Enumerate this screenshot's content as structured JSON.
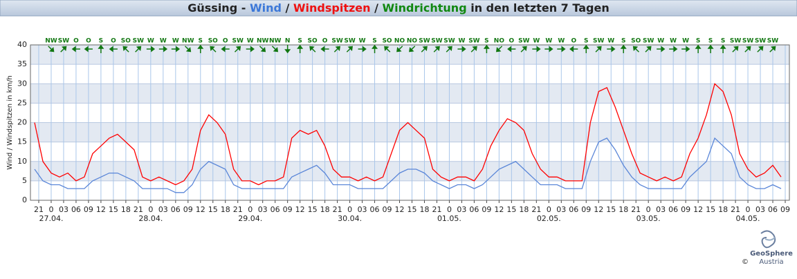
{
  "chart_data": {
    "type": "line",
    "title": [
      {
        "text": "Güssing - ",
        "color": "#222222"
      },
      {
        "text": "Wind",
        "color": "#3c78d8"
      },
      {
        "text": " / ",
        "color": "#222222"
      },
      {
        "text": "Windspitzen",
        "color": "#ee1111"
      },
      {
        "text": " / ",
        "color": "#222222"
      },
      {
        "text": "Windrichtung",
        "color": "#118811"
      },
      {
        "text": " in den letzten 7 Tagen",
        "color": "#222222"
      }
    ],
    "y_label": "Wind / Windspitzen in km/h",
    "x": [
      -4,
      -2,
      0,
      2,
      4,
      6,
      8,
      10,
      12,
      14,
      16,
      18,
      20,
      22,
      24,
      26,
      28,
      30,
      32,
      34,
      36,
      38,
      40,
      42,
      44,
      46,
      48,
      50,
      52,
      54,
      56,
      58,
      60,
      62,
      64,
      66,
      68,
      70,
      72,
      74,
      76,
      78,
      80,
      82,
      84,
      86,
      88,
      90,
      92,
      94,
      96,
      98,
      100,
      102,
      104,
      106,
      108,
      110,
      112,
      114,
      116,
      118,
      120,
      122,
      124,
      126,
      128,
      130,
      132,
      134,
      136,
      138,
      140,
      142,
      144,
      146,
      148,
      150,
      152,
      154,
      156,
      158,
      160,
      162,
      164,
      166,
      168,
      170,
      172,
      174,
      176
    ],
    "series": [
      {
        "name": "Windspitzen",
        "color": "#ff0000",
        "values": [
          20,
          10,
          7,
          6,
          7,
          5,
          6,
          12,
          14,
          16,
          17,
          15,
          13,
          6,
          5,
          6,
          5,
          4,
          5,
          8,
          18,
          22,
          20,
          17,
          8,
          5,
          5,
          4,
          5,
          5,
          6,
          16,
          18,
          17,
          18,
          14,
          8,
          6,
          6,
          5,
          6,
          5,
          6,
          12,
          18,
          20,
          18,
          16,
          8,
          6,
          5,
          6,
          6,
          5,
          8,
          14,
          18,
          21,
          20,
          18,
          12,
          8,
          6,
          6,
          5,
          5,
          5,
          20,
          28,
          29,
          24,
          18,
          12,
          7,
          6,
          5,
          6,
          5,
          6,
          12,
          16,
          22,
          30,
          28,
          22,
          12,
          8,
          6,
          7,
          9,
          6
        ]
      },
      {
        "name": "Wind",
        "color": "#5a86d8",
        "values": [
          8,
          5,
          4,
          4,
          3,
          3,
          3,
          5,
          6,
          7,
          7,
          6,
          5,
          3,
          3,
          3,
          3,
          2,
          2,
          4,
          8,
          10,
          9,
          8,
          4,
          3,
          3,
          3,
          3,
          3,
          3,
          6,
          7,
          8,
          9,
          7,
          4,
          4,
          4,
          3,
          3,
          3,
          3,
          5,
          7,
          8,
          8,
          7,
          5,
          4,
          3,
          4,
          4,
          3,
          4,
          6,
          8,
          9,
          10,
          8,
          6,
          4,
          4,
          4,
          3,
          3,
          3,
          10,
          15,
          16,
          13,
          9,
          6,
          4,
          3,
          3,
          3,
          3,
          3,
          6,
          8,
          10,
          16,
          14,
          12,
          6,
          4,
          3,
          3,
          4,
          3
        ]
      }
    ],
    "directions": [
      "NW",
      "SW",
      "O",
      "O",
      "S",
      "O",
      "SO",
      "SW",
      "W",
      "W",
      "W",
      "NW",
      "S",
      "SO",
      "O",
      "SW",
      "W",
      "NW",
      "NW",
      "N",
      "S",
      "SO",
      "O",
      "SW",
      "SW",
      "W",
      "S",
      "SO",
      "NO",
      "NO",
      "SW",
      "SW",
      "SW",
      "W",
      "SW",
      "S",
      "NO",
      "O",
      "SW",
      "W",
      "W",
      "W",
      "O",
      "S",
      "SW",
      "W",
      "S",
      "SO",
      "SW",
      "W",
      "W",
      "W",
      "S",
      "S",
      "S",
      "SW",
      "SW",
      "SW",
      "SW"
    ],
    "direction_color": "#117711",
    "xlim": [
      -5,
      178
    ],
    "ylim": [
      0,
      40
    ],
    "yticks": [
      0,
      5,
      10,
      15,
      20,
      25,
      30,
      35,
      40
    ],
    "xticks": [
      {
        "value": -3,
        "label": "21"
      },
      {
        "value": 0,
        "label": "0"
      },
      {
        "value": 3,
        "label": "03"
      },
      {
        "value": 6,
        "label": "06"
      },
      {
        "value": 9,
        "label": "09"
      },
      {
        "value": 12,
        "label": "12"
      },
      {
        "value": 15,
        "label": "15"
      },
      {
        "value": 18,
        "label": "18"
      },
      {
        "value": 21,
        "label": "21"
      },
      {
        "value": 24,
        "label": "0"
      },
      {
        "value": 27,
        "label": "03"
      },
      {
        "value": 30,
        "label": "06"
      },
      {
        "value": 33,
        "label": "09"
      },
      {
        "value": 36,
        "label": "12"
      },
      {
        "value": 39,
        "label": "15"
      },
      {
        "value": 42,
        "label": "18"
      },
      {
        "value": 45,
        "label": "21"
      },
      {
        "value": 48,
        "label": "0"
      },
      {
        "value": 51,
        "label": "03"
      },
      {
        "value": 54,
        "label": "06"
      },
      {
        "value": 57,
        "label": "09"
      },
      {
        "value": 60,
        "label": "12"
      },
      {
        "value": 63,
        "label": "15"
      },
      {
        "value": 66,
        "label": "18"
      },
      {
        "value": 69,
        "label": "21"
      },
      {
        "value": 72,
        "label": "0"
      },
      {
        "value": 75,
        "label": "03"
      },
      {
        "value": 78,
        "label": "06"
      },
      {
        "value": 81,
        "label": "09"
      },
      {
        "value": 84,
        "label": "12"
      },
      {
        "value": 87,
        "label": "15"
      },
      {
        "value": 90,
        "label": "18"
      },
      {
        "value": 93,
        "label": "21"
      },
      {
        "value": 96,
        "label": "0"
      },
      {
        "value": 99,
        "label": "03"
      },
      {
        "value": 102,
        "label": "06"
      },
      {
        "value": 105,
        "label": "09"
      },
      {
        "value": 108,
        "label": "12"
      },
      {
        "value": 111,
        "label": "15"
      },
      {
        "value": 114,
        "label": "18"
      },
      {
        "value": 117,
        "label": "21"
      },
      {
        "value": 120,
        "label": "0"
      },
      {
        "value": 123,
        "label": "03"
      },
      {
        "value": 126,
        "label": "06"
      },
      {
        "value": 129,
        "label": "09"
      },
      {
        "value": 132,
        "label": "12"
      },
      {
        "value": 135,
        "label": "15"
      },
      {
        "value": 138,
        "label": "18"
      },
      {
        "value": 141,
        "label": "21"
      },
      {
        "value": 144,
        "label": "0"
      },
      {
        "value": 147,
        "label": "03"
      },
      {
        "value": 150,
        "label": "06"
      },
      {
        "value": 153,
        "label": "09"
      },
      {
        "value": 156,
        "label": "12"
      },
      {
        "value": 159,
        "label": "15"
      },
      {
        "value": 162,
        "label": "18"
      },
      {
        "value": 165,
        "label": "21"
      },
      {
        "value": 168,
        "label": "0"
      },
      {
        "value": 171,
        "label": "03"
      },
      {
        "value": 174,
        "label": "06"
      },
      {
        "value": 177,
        "label": "09"
      }
    ],
    "day_ticks": [
      {
        "value": 0,
        "label": "27.04."
      },
      {
        "value": 24,
        "label": "28.04."
      },
      {
        "value": 48,
        "label": "29.04."
      },
      {
        "value": 72,
        "label": "30.04."
      },
      {
        "value": 96,
        "label": "01.05."
      },
      {
        "value": 120,
        "label": "02.05."
      },
      {
        "value": 144,
        "label": "03.05."
      },
      {
        "value": 168,
        "label": "04.05."
      }
    ],
    "grid": true,
    "logo": {
      "name": "GeoSphere",
      "sub": "Austria",
      "copyright": "©"
    }
  }
}
